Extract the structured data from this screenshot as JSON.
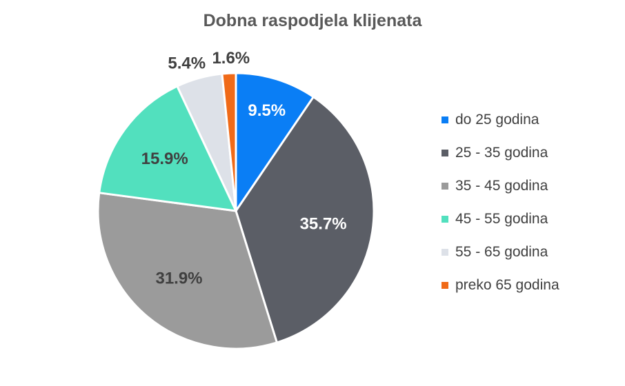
{
  "chart_data": {
    "type": "pie",
    "title": "Dobna raspodjela klijenata",
    "legend_position": "right",
    "slices": [
      {
        "label": "do 25 godina",
        "value": 9.5,
        "value_label": "9.5%",
        "color": "#0A7EF5",
        "label_color": "#FFFFFF",
        "label_placement": "inside"
      },
      {
        "label": "25 - 35 godina",
        "value": 35.7,
        "value_label": "35.7%",
        "color": "#5B5E66",
        "label_color": "#FFFFFF",
        "label_placement": "inside"
      },
      {
        "label": "35 - 45 godina",
        "value": 31.9,
        "value_label": "31.9%",
        "color": "#9B9B9B",
        "label_color": "#404040",
        "label_placement": "inside"
      },
      {
        "label": "45 - 55 godina",
        "value": 15.9,
        "value_label": "15.9%",
        "color": "#52E0BE",
        "label_color": "#404040",
        "label_placement": "inside"
      },
      {
        "label": "55 - 65 godina",
        "value": 5.4,
        "value_label": "5.4%",
        "color": "#DDE1E8",
        "label_color": "#404040",
        "label_placement": "outside"
      },
      {
        "label": "preko 65 godina",
        "value": 1.6,
        "value_label": "1.6%",
        "color": "#F06A18",
        "label_color": "#404040",
        "label_placement": "outside"
      }
    ]
  }
}
